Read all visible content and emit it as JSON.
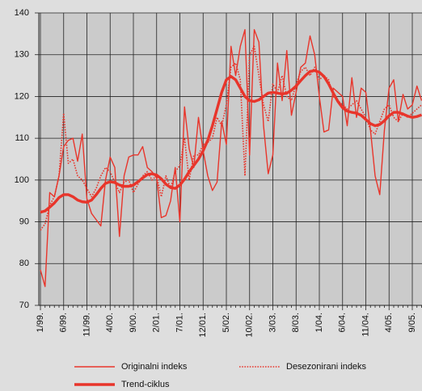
{
  "chart_data": {
    "type": "line",
    "categories": [
      "1/99.",
      null,
      null,
      null,
      null,
      "6/99.",
      null,
      null,
      null,
      null,
      "11/99.",
      null,
      null,
      null,
      null,
      "4/00.",
      null,
      null,
      null,
      null,
      "9/00.",
      null,
      null,
      null,
      null,
      "2/01.",
      null,
      null,
      null,
      null,
      "7/01.",
      null,
      null,
      null,
      null,
      "12/01.",
      null,
      null,
      null,
      null,
      "5/02.",
      null,
      null,
      null,
      null,
      "10/02.",
      null,
      null,
      null,
      null,
      "3/03.",
      null,
      null,
      null,
      null,
      "8/03.",
      null,
      null,
      null,
      null,
      "1/04.",
      null,
      null,
      null,
      null,
      "6/04.",
      null,
      null,
      null,
      null,
      "11/04.",
      null,
      null,
      null,
      null,
      "4/05.",
      null,
      null,
      null,
      null,
      "9/05.",
      null,
      null
    ],
    "series": [
      {
        "name": "Originalni indeks",
        "color": "#e8352b",
        "style": "thin",
        "values": [
          78.5,
          74.5,
          97,
          96,
          101,
          108,
          109.5,
          110,
          104.5,
          111,
          95.5,
          92,
          90.5,
          89,
          100,
          105.5,
          103,
          86.5,
          101,
          105.5,
          106,
          106,
          108,
          103,
          102,
          100.5,
          91,
          91.5,
          95,
          103,
          90,
          117.5,
          107.5,
          103,
          115,
          107,
          101,
          97.5,
          99.5,
          114,
          108.5,
          132,
          125,
          132,
          136,
          106,
          136,
          133,
          113,
          101.5,
          106,
          128,
          119,
          131,
          115.5,
          121,
          127,
          128,
          134.5,
          130,
          120,
          111.5,
          112,
          122,
          121,
          120,
          113,
          124.5,
          115,
          122,
          121,
          112,
          101,
          96.5,
          112,
          122,
          124,
          114,
          120.5,
          117,
          118,
          122.5,
          119
        ]
      },
      {
        "name": "Desezonirani indeks",
        "color": "#e8352b",
        "style": "dotted",
        "values": [
          88,
          89.5,
          94,
          96,
          101,
          116,
          104,
          105,
          101,
          100,
          98,
          96,
          98,
          101,
          103,
          102,
          99.5,
          97,
          99.5,
          100,
          97,
          99,
          101,
          102,
          100,
          101,
          96,
          101,
          98,
          102,
          103.5,
          110,
          100,
          106,
          106,
          108.5,
          109,
          110,
          115,
          113,
          118,
          127,
          128,
          124,
          101,
          130,
          132,
          125,
          118,
          114,
          123,
          121,
          125,
          120,
          119,
          123,
          126,
          127,
          125,
          127,
          124,
          125,
          124,
          120,
          119,
          118,
          117,
          118,
          119,
          117,
          115,
          112,
          111,
          114,
          117,
          118,
          115,
          114,
          116,
          115,
          116,
          117,
          118
        ]
      },
      {
        "name": "Trend-ciklus",
        "color": "#e8352b",
        "style": "thick",
        "values": [
          92.3,
          92.6,
          93.5,
          94.5,
          95.8,
          96.5,
          96.5,
          96,
          95.2,
          94.8,
          94.7,
          95.2,
          96.5,
          98,
          99.2,
          99.6,
          99.4,
          98.8,
          98.5,
          98.5,
          98.8,
          99.6,
          100.5,
          101.3,
          101.5,
          101.2,
          100.3,
          99,
          98.2,
          98,
          98.8,
          100.2,
          102,
          103.5,
          105,
          107,
          109.5,
          113,
          117,
          121,
          124,
          124.8,
          124,
          122,
          120,
          119,
          118.8,
          119.2,
          120,
          120.8,
          121,
          120.8,
          120.6,
          120.8,
          121.5,
          122.5,
          123.8,
          125,
          126,
          126.2,
          125.8,
          124.8,
          123,
          120.8,
          118.8,
          117.3,
          116.5,
          116.2,
          116,
          115.5,
          114.5,
          113.5,
          113,
          113.3,
          114.2,
          115.4,
          116.2,
          116.2,
          115.8,
          115.3,
          115,
          115.2,
          115.6
        ]
      }
    ],
    "ylim": [
      70,
      140
    ],
    "yticks": [
      70,
      80,
      90,
      100,
      110,
      120,
      130,
      140
    ],
    "grid": true
  }
}
